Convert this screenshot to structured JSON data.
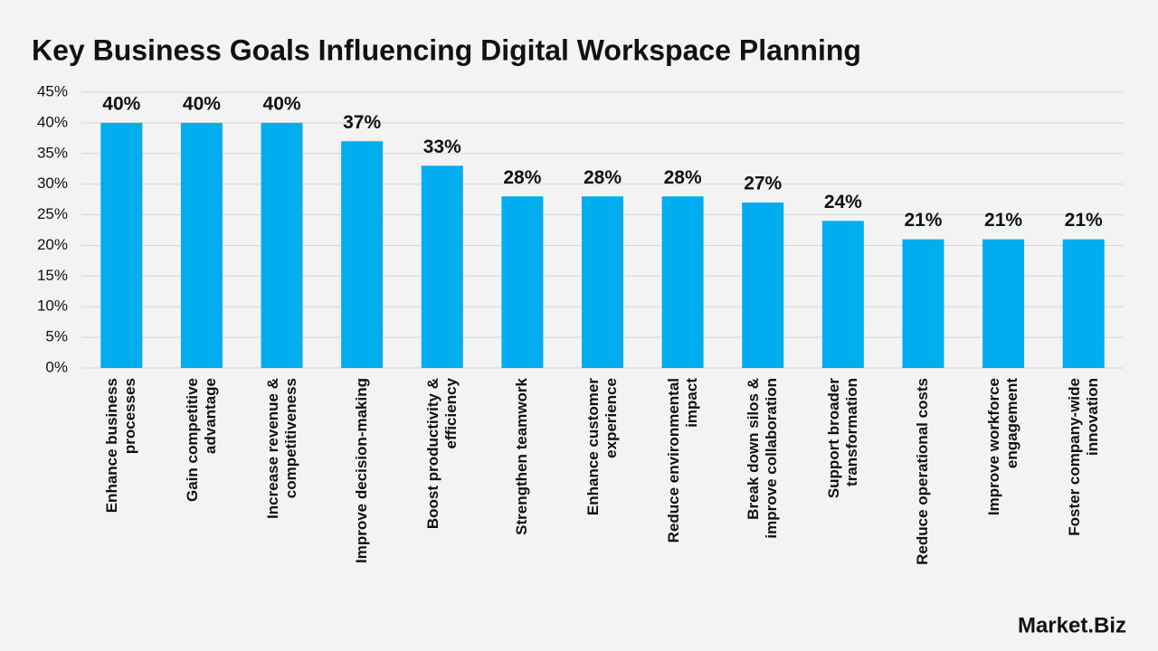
{
  "chart_data": {
    "type": "bar",
    "title": "Key Business Goals Influencing Digital Workspace Planning",
    "categories": [
      "Enhance business\nprocesses",
      "Gain competitive\nadvantage",
      "Increase revenue &\ncompetitiveness",
      "Improve decision-making",
      "Boost productivity &\nefficiency",
      "Strengthen teamwork",
      "Enhance customer\nexperience",
      "Reduce environmental\nimpact",
      "Break down silos &\nimprove collaboration",
      "Support broader\ntransformation",
      "Reduce operational costs",
      "Improve workforce\nengagement",
      "Foster company-wide\ninnovation"
    ],
    "values": [
      40,
      40,
      40,
      37,
      33,
      28,
      28,
      28,
      27,
      24,
      21,
      21,
      21
    ],
    "value_labels": [
      "40%",
      "40%",
      "40%",
      "37%",
      "33%",
      "28%",
      "28%",
      "28%",
      "27%",
      "24%",
      "21%",
      "21%",
      "21%"
    ],
    "color": "#00adef",
    "ylim": [
      0,
      45
    ],
    "yticks": [
      {
        "value": 0,
        "label": "0%"
      },
      {
        "value": 5,
        "label": "5%"
      },
      {
        "value": 10,
        "label": "10%"
      },
      {
        "value": 15,
        "label": "15%"
      },
      {
        "value": 20,
        "label": "20%"
      },
      {
        "value": 25,
        "label": "25%"
      },
      {
        "value": 30,
        "label": "30%"
      },
      {
        "value": 35,
        "label": "35%"
      },
      {
        "value": 40,
        "label": "40%"
      },
      {
        "value": 45,
        "label": "45%"
      }
    ],
    "grid": true,
    "logo": "Market.Biz"
  }
}
